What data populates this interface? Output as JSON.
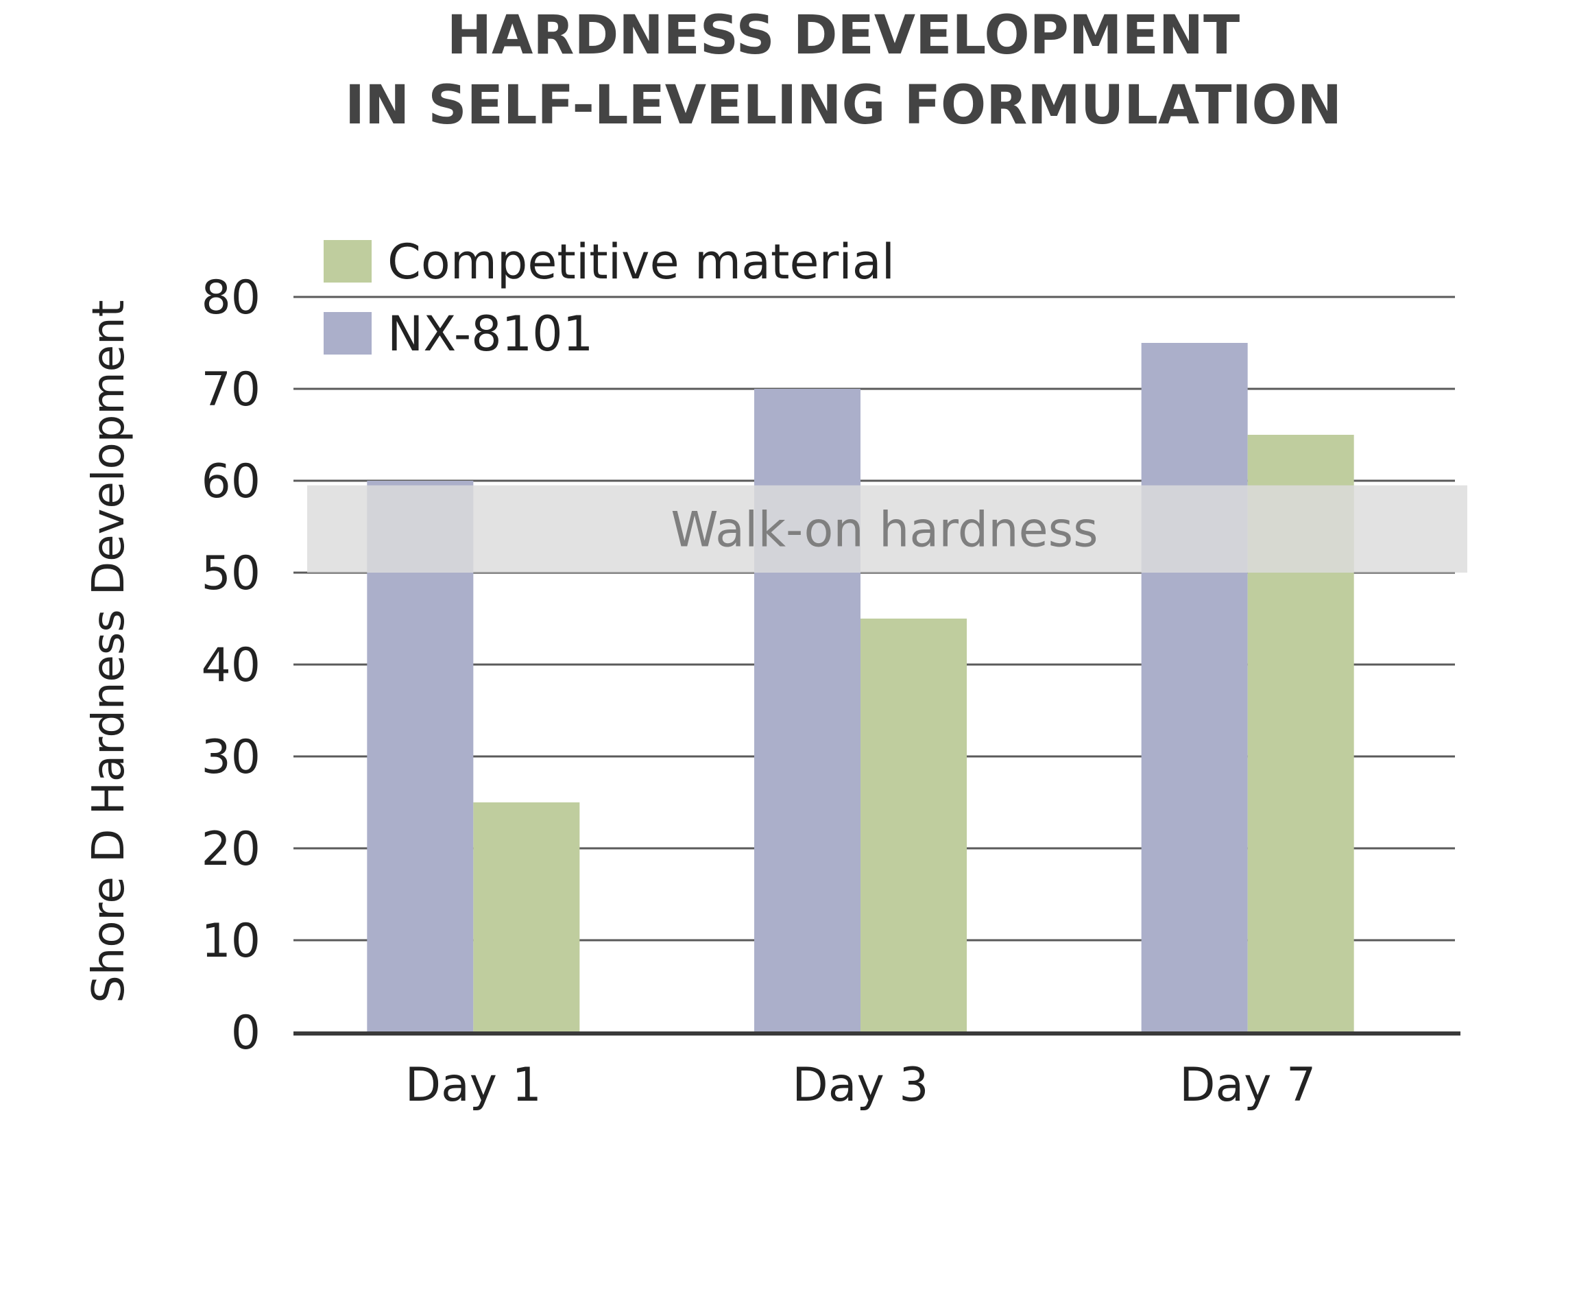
{
  "chart_data": {
    "type": "bar",
    "title_lines": [
      "HARDNESS DEVELOPMENT",
      "IN SELF-LEVELING FORMULATION"
    ],
    "ylabel": "Shore D Hardness Development",
    "xlabel": "",
    "categories": [
      "Day 1",
      "Day 3",
      "Day 7"
    ],
    "series": [
      {
        "name": "NX-8101",
        "values": [
          60,
          70,
          75
        ],
        "color": "#abafca"
      },
      {
        "name": "Competitive material",
        "values": [
          25,
          45,
          65
        ],
        "color": "#bfcd9e"
      }
    ],
    "ylim": [
      0,
      80
    ],
    "yticks": [
      0,
      10,
      20,
      30,
      40,
      50,
      60,
      70,
      80
    ],
    "grid": true,
    "legend": {
      "placement": "top-left",
      "entries": [
        {
          "label": "Competitive material",
          "color": "#bfcd9e"
        },
        {
          "label": "NX-8101",
          "color": "#abafca"
        }
      ]
    },
    "band": {
      "label": "Walk-on hardness",
      "from": 50,
      "to": 59.5,
      "color": "#dcdcdc"
    }
  }
}
